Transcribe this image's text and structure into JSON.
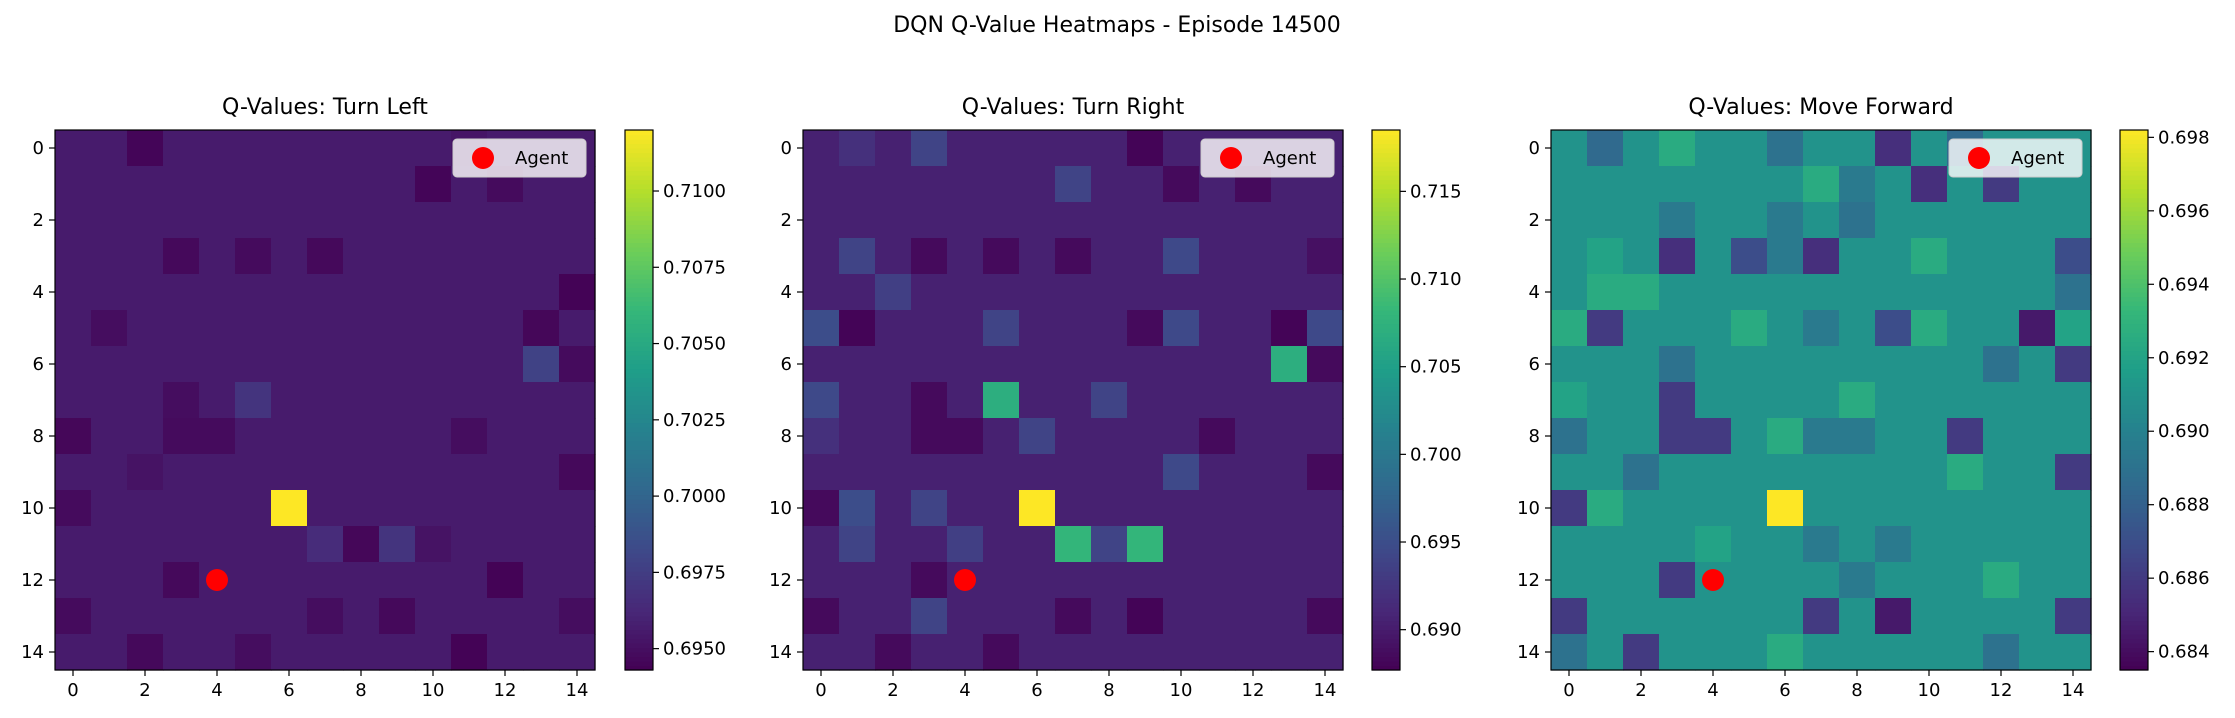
{
  "figure": {
    "suptitle": "DQN Q-Value Heatmaps - Episode 14500"
  },
  "colors": {
    "agent": "#ff0000",
    "colormap": "viridis"
  },
  "chart_data": [
    {
      "type": "heatmap",
      "title": "Q-Values: Turn Left",
      "xlabel": "",
      "ylabel": "",
      "xticks": [
        0,
        2,
        4,
        6,
        8,
        10,
        12,
        14
      ],
      "yticks": [
        0,
        2,
        4,
        6,
        8,
        10,
        12,
        14
      ],
      "xlim": [
        -0.5,
        14.5
      ],
      "ylim": [
        14.5,
        -0.5
      ],
      "colorbar": {
        "range": [
          0.6943,
          0.712
        ],
        "ticks": [
          0.695,
          0.6975,
          0.7,
          0.7025,
          0.705,
          0.7075,
          0.71
        ],
        "tick_format": 4
      },
      "legend": {
        "placement": "upper-right",
        "entries": [
          {
            "label": "Agent",
            "marker": "circle",
            "color": "#ff0000"
          }
        ]
      },
      "agent": {
        "x": 4,
        "y": 12
      },
      "base_value": 0.6956,
      "cells": [
        {
          "r": 0,
          "c": 2,
          "v": 0.6945
        },
        {
          "r": 0,
          "c": 11,
          "v": 0.6953
        },
        {
          "r": 1,
          "c": 10,
          "v": 0.6945
        },
        {
          "r": 1,
          "c": 12,
          "v": 0.6948
        },
        {
          "r": 3,
          "c": 3,
          "v": 0.6947
        },
        {
          "r": 3,
          "c": 5,
          "v": 0.6948
        },
        {
          "r": 3,
          "c": 7,
          "v": 0.6947
        },
        {
          "r": 4,
          "c": 14,
          "v": 0.6944
        },
        {
          "r": 5,
          "c": 1,
          "v": 0.6949
        },
        {
          "r": 5,
          "c": 13,
          "v": 0.6946
        },
        {
          "r": 6,
          "c": 13,
          "v": 0.6978
        },
        {
          "r": 6,
          "c": 14,
          "v": 0.6948
        },
        {
          "r": 7,
          "c": 3,
          "v": 0.6949
        },
        {
          "r": 7,
          "c": 5,
          "v": 0.697
        },
        {
          "r": 8,
          "c": 0,
          "v": 0.6946
        },
        {
          "r": 8,
          "c": 3,
          "v": 0.6948
        },
        {
          "r": 8,
          "c": 4,
          "v": 0.6948
        },
        {
          "r": 8,
          "c": 11,
          "v": 0.6949
        },
        {
          "r": 9,
          "c": 2,
          "v": 0.6952
        },
        {
          "r": 9,
          "c": 14,
          "v": 0.6947
        },
        {
          "r": 10,
          "c": 0,
          "v": 0.6948
        },
        {
          "r": 10,
          "c": 6,
          "v": 0.712
        },
        {
          "r": 11,
          "c": 7,
          "v": 0.6965
        },
        {
          "r": 11,
          "c": 8,
          "v": 0.6946
        },
        {
          "r": 11,
          "c": 9,
          "v": 0.697
        },
        {
          "r": 11,
          "c": 10,
          "v": 0.6952
        },
        {
          "r": 12,
          "c": 3,
          "v": 0.6947
        },
        {
          "r": 12,
          "c": 12,
          "v": 0.6944
        },
        {
          "r": 13,
          "c": 0,
          "v": 0.6948
        },
        {
          "r": 13,
          "c": 7,
          "v": 0.6949
        },
        {
          "r": 13,
          "c": 9,
          "v": 0.6947
        },
        {
          "r": 13,
          "c": 14,
          "v": 0.6949
        },
        {
          "r": 14,
          "c": 2,
          "v": 0.6947
        },
        {
          "r": 14,
          "c": 5,
          "v": 0.6949
        },
        {
          "r": 14,
          "c": 11,
          "v": 0.6944
        }
      ]
    },
    {
      "type": "heatmap",
      "title": "Q-Values: Turn Right",
      "xlabel": "",
      "ylabel": "",
      "xticks": [
        0,
        2,
        4,
        6,
        8,
        10,
        12,
        14
      ],
      "yticks": [
        0,
        2,
        4,
        6,
        8,
        10,
        12,
        14
      ],
      "xlim": [
        -0.5,
        14.5
      ],
      "ylim": [
        14.5,
        -0.5
      ],
      "colorbar": {
        "range": [
          0.6877,
          0.7185
        ],
        "ticks": [
          0.69,
          0.695,
          0.7,
          0.705,
          0.71,
          0.715
        ],
        "tick_format": 3
      },
      "legend": {
        "placement": "upper-right",
        "entries": [
          {
            "label": "Agent",
            "marker": "circle",
            "color": "#ff0000"
          }
        ]
      },
      "agent": {
        "x": 4,
        "y": 12
      },
      "base_value": 0.6905,
      "cells": [
        {
          "r": 0,
          "c": 1,
          "v": 0.692
        },
        {
          "r": 0,
          "c": 3,
          "v": 0.694
        },
        {
          "r": 0,
          "c": 9,
          "v": 0.688
        },
        {
          "r": 1,
          "c": 7,
          "v": 0.694
        },
        {
          "r": 1,
          "c": 10,
          "v": 0.6885
        },
        {
          "r": 1,
          "c": 12,
          "v": 0.6885
        },
        {
          "r": 3,
          "c": 1,
          "v": 0.694
        },
        {
          "r": 3,
          "c": 3,
          "v": 0.6885
        },
        {
          "r": 3,
          "c": 5,
          "v": 0.6885
        },
        {
          "r": 3,
          "c": 7,
          "v": 0.6885
        },
        {
          "r": 3,
          "c": 10,
          "v": 0.6945
        },
        {
          "r": 3,
          "c": 14,
          "v": 0.689
        },
        {
          "r": 4,
          "c": 2,
          "v": 0.6935
        },
        {
          "r": 5,
          "c": 0,
          "v": 0.695
        },
        {
          "r": 5,
          "c": 1,
          "v": 0.688
        },
        {
          "r": 5,
          "c": 5,
          "v": 0.694
        },
        {
          "r": 5,
          "c": 9,
          "v": 0.6885
        },
        {
          "r": 5,
          "c": 10,
          "v": 0.6945
        },
        {
          "r": 5,
          "c": 13,
          "v": 0.688
        },
        {
          "r": 5,
          "c": 14,
          "v": 0.6945
        },
        {
          "r": 6,
          "c": 13,
          "v": 0.707
        },
        {
          "r": 6,
          "c": 14,
          "v": 0.6885
        },
        {
          "r": 7,
          "c": 0,
          "v": 0.6945
        },
        {
          "r": 7,
          "c": 3,
          "v": 0.6885
        },
        {
          "r": 7,
          "c": 5,
          "v": 0.707
        },
        {
          "r": 7,
          "c": 8,
          "v": 0.694
        },
        {
          "r": 8,
          "c": 0,
          "v": 0.692
        },
        {
          "r": 8,
          "c": 3,
          "v": 0.6885
        },
        {
          "r": 8,
          "c": 4,
          "v": 0.6885
        },
        {
          "r": 8,
          "c": 6,
          "v": 0.694
        },
        {
          "r": 8,
          "c": 11,
          "v": 0.6885
        },
        {
          "r": 9,
          "c": 10,
          "v": 0.6945
        },
        {
          "r": 9,
          "c": 14,
          "v": 0.6885
        },
        {
          "r": 10,
          "c": 0,
          "v": 0.6885
        },
        {
          "r": 10,
          "c": 1,
          "v": 0.695
        },
        {
          "r": 10,
          "c": 3,
          "v": 0.694
        },
        {
          "r": 10,
          "c": 6,
          "v": 0.7185
        },
        {
          "r": 11,
          "c": 1,
          "v": 0.694
        },
        {
          "r": 11,
          "c": 4,
          "v": 0.6935
        },
        {
          "r": 11,
          "c": 7,
          "v": 0.708
        },
        {
          "r": 11,
          "c": 8,
          "v": 0.694
        },
        {
          "r": 11,
          "c": 9,
          "v": 0.708
        },
        {
          "r": 12,
          "c": 3,
          "v": 0.6885
        },
        {
          "r": 13,
          "c": 0,
          "v": 0.6885
        },
        {
          "r": 13,
          "c": 3,
          "v": 0.694
        },
        {
          "r": 13,
          "c": 7,
          "v": 0.6885
        },
        {
          "r": 13,
          "c": 9,
          "v": 0.688
        },
        {
          "r": 13,
          "c": 14,
          "v": 0.6885
        },
        {
          "r": 14,
          "c": 2,
          "v": 0.6885
        },
        {
          "r": 14,
          "c": 5,
          "v": 0.6885
        }
      ]
    },
    {
      "type": "heatmap",
      "title": "Q-Values: Move Forward",
      "xlabel": "",
      "ylabel": "",
      "xticks": [
        0,
        2,
        4,
        6,
        8,
        10,
        12,
        14
      ],
      "yticks": [
        0,
        2,
        4,
        6,
        8,
        10,
        12,
        14
      ],
      "xlim": [
        -0.5,
        14.5
      ],
      "ylim": [
        14.5,
        -0.5
      ],
      "colorbar": {
        "range": [
          0.6835,
          0.6982
        ],
        "ticks": [
          0.684,
          0.686,
          0.688,
          0.69,
          0.692,
          0.694,
          0.696,
          0.698
        ],
        "tick_format": 3
      },
      "legend": {
        "placement": "upper-right",
        "entries": [
          {
            "label": "Agent",
            "marker": "circle",
            "color": "#ff0000"
          }
        ]
      },
      "agent": {
        "x": 4,
        "y": 12
      },
      "base_value": 0.691,
      "cells": [
        {
          "r": 0,
          "c": 1,
          "v": 0.6885
        },
        {
          "r": 0,
          "c": 3,
          "v": 0.6925
        },
        {
          "r": 0,
          "c": 6,
          "v": 0.689
        },
        {
          "r": 0,
          "c": 9,
          "v": 0.6855
        },
        {
          "r": 0,
          "c": 11,
          "v": 0.6885
        },
        {
          "r": 1,
          "c": 7,
          "v": 0.6925
        },
        {
          "r": 1,
          "c": 8,
          "v": 0.6895
        },
        {
          "r": 1,
          "c": 10,
          "v": 0.6855
        },
        {
          "r": 1,
          "c": 12,
          "v": 0.686
        },
        {
          "r": 2,
          "c": 3,
          "v": 0.6895
        },
        {
          "r": 2,
          "c": 6,
          "v": 0.6895
        },
        {
          "r": 2,
          "c": 8,
          "v": 0.689
        },
        {
          "r": 3,
          "c": 1,
          "v": 0.692
        },
        {
          "r": 3,
          "c": 3,
          "v": 0.6855
        },
        {
          "r": 3,
          "c": 5,
          "v": 0.687
        },
        {
          "r": 3,
          "c": 6,
          "v": 0.6895
        },
        {
          "r": 3,
          "c": 7,
          "v": 0.6855
        },
        {
          "r": 3,
          "c": 10,
          "v": 0.6925
        },
        {
          "r": 3,
          "c": 14,
          "v": 0.687
        },
        {
          "r": 4,
          "c": 1,
          "v": 0.6925
        },
        {
          "r": 4,
          "c": 2,
          "v": 0.6925
        },
        {
          "r": 4,
          "c": 14,
          "v": 0.689
        },
        {
          "r": 5,
          "c": 0,
          "v": 0.6925
        },
        {
          "r": 5,
          "c": 1,
          "v": 0.686
        },
        {
          "r": 5,
          "c": 5,
          "v": 0.6925
        },
        {
          "r": 5,
          "c": 7,
          "v": 0.6895
        },
        {
          "r": 5,
          "c": 9,
          "v": 0.687
        },
        {
          "r": 5,
          "c": 10,
          "v": 0.6925
        },
        {
          "r": 5,
          "c": 13,
          "v": 0.6845
        },
        {
          "r": 5,
          "c": 14,
          "v": 0.692
        },
        {
          "r": 6,
          "c": 3,
          "v": 0.689
        },
        {
          "r": 6,
          "c": 12,
          "v": 0.689
        },
        {
          "r": 6,
          "c": 14,
          "v": 0.686
        },
        {
          "r": 7,
          "c": 0,
          "v": 0.692
        },
        {
          "r": 7,
          "c": 3,
          "v": 0.686
        },
        {
          "r": 7,
          "c": 8,
          "v": 0.6925
        },
        {
          "r": 8,
          "c": 0,
          "v": 0.689
        },
        {
          "r": 8,
          "c": 3,
          "v": 0.686
        },
        {
          "r": 8,
          "c": 4,
          "v": 0.686
        },
        {
          "r": 8,
          "c": 6,
          "v": 0.6925
        },
        {
          "r": 8,
          "c": 7,
          "v": 0.6895
        },
        {
          "r": 8,
          "c": 8,
          "v": 0.6895
        },
        {
          "r": 8,
          "c": 11,
          "v": 0.686
        },
        {
          "r": 9,
          "c": 2,
          "v": 0.689
        },
        {
          "r": 9,
          "c": 11,
          "v": 0.6925
        },
        {
          "r": 9,
          "c": 14,
          "v": 0.686
        },
        {
          "r": 10,
          "c": 0,
          "v": 0.686
        },
        {
          "r": 10,
          "c": 1,
          "v": 0.6925
        },
        {
          "r": 10,
          "c": 6,
          "v": 0.6982
        },
        {
          "r": 11,
          "c": 4,
          "v": 0.692
        },
        {
          "r": 11,
          "c": 7,
          "v": 0.6895
        },
        {
          "r": 11,
          "c": 9,
          "v": 0.6895
        },
        {
          "r": 12,
          "c": 3,
          "v": 0.686
        },
        {
          "r": 12,
          "c": 8,
          "v": 0.6895
        },
        {
          "r": 12,
          "c": 12,
          "v": 0.6925
        },
        {
          "r": 13,
          "c": 0,
          "v": 0.686
        },
        {
          "r": 13,
          "c": 7,
          "v": 0.686
        },
        {
          "r": 13,
          "c": 9,
          "v": 0.6845
        },
        {
          "r": 13,
          "c": 14,
          "v": 0.686
        },
        {
          "r": 14,
          "c": 0,
          "v": 0.689
        },
        {
          "r": 14,
          "c": 2,
          "v": 0.686
        },
        {
          "r": 14,
          "c": 6,
          "v": 0.6925
        },
        {
          "r": 14,
          "c": 12,
          "v": 0.689
        }
      ]
    }
  ]
}
